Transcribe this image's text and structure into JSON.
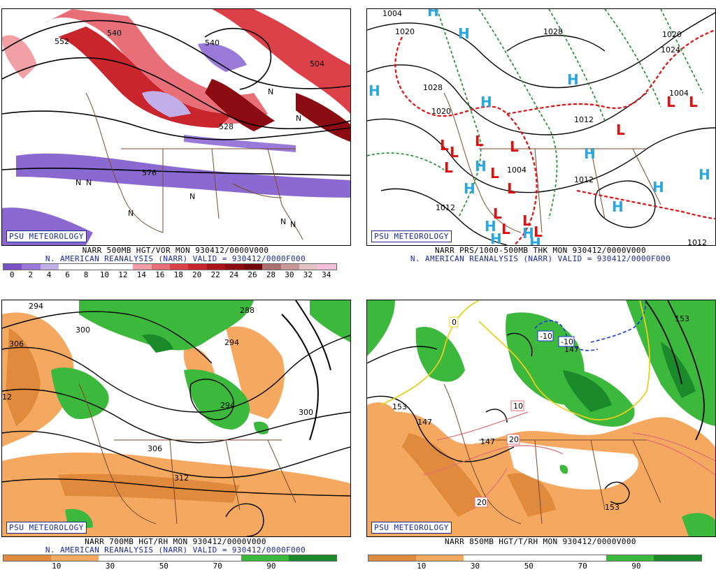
{
  "panels": [
    {
      "id": "vor500",
      "badge": "PSU METEOROLOGY",
      "title_line1": "NARR 500MB HGT/VOR MON 930412/0000V000",
      "title_line2": "N. AMERICAN REANALYSIS (NARR) VALID = 930412/0000F000",
      "contour_labels": [
        "552",
        "540",
        "540",
        "504",
        "528",
        "576"
      ],
      "extreme_markers": "N",
      "colorbar": {
        "ticks": [
          "0",
          "2",
          "4",
          "6",
          "8",
          "10",
          "12",
          "14",
          "16",
          "18",
          "20",
          "22",
          "24",
          "26",
          "28",
          "30",
          "32",
          "34"
        ],
        "colors": [
          "#7a52c8",
          "#9a7ad8",
          "#c2aee8",
          "#ffffff",
          "#ffffff",
          "#ffffff",
          "#ffffff",
          "#f2a0a6",
          "#e86f78",
          "#dc4048",
          "#c8252c",
          "#a8141a",
          "#8a0c12",
          "#6e0a0e",
          "#a87070",
          "#c89898",
          "#e2c4c8",
          "#f4c0d8"
        ]
      }
    },
    {
      "id": "prs",
      "badge": "PSU METEOROLOGY",
      "title_line1": "NARR PRS/1000-500MB THK MON 930412/0000V000",
      "title_line2": "N. AMERICAN REANALYSIS (NARR) VALID = 930412/0000F000",
      "isobar_labels": [
        "1004",
        "1020",
        "1028",
        "1028",
        "1020",
        "1012",
        "1020",
        "1004",
        "1004",
        "1012",
        "1012",
        "1012",
        "1024"
      ],
      "high_symbol": "H",
      "low_symbol": "L",
      "high_color": "#29a8e0",
      "low_color": "#e01010"
    },
    {
      "id": "rh700",
      "badge": "PSU METEOROLOGY",
      "title_line1": "NARR 700MB HGT/RH MON 930412/0000V000",
      "title_line2": "N. AMERICAN REANALYSIS (NARR) VALID = 930412/0000F000",
      "contour_labels": [
        "294",
        "300",
        "306",
        "288",
        "294",
        "294",
        "300",
        "306",
        "312",
        "12"
      ],
      "colorbar": {
        "ticks": [
          "10",
          "30",
          "50",
          "70",
          "90"
        ],
        "colors": [
          "#e08a3e",
          "#f4a860",
          "#ffffff",
          "#ffffff",
          "#ffffff",
          "#3cb83c",
          "#1a8a2a"
        ]
      }
    },
    {
      "id": "t850",
      "badge": "PSU METEOROLOGY",
      "title_line1": "NARR 850MB HGT/T/RH MON 930412/0000V000",
      "title_line2": "",
      "contour_labels": [
        "153",
        "147",
        "147",
        "153",
        "147",
        "153"
      ],
      "temp_labels": [
        "-10",
        "-10",
        "0",
        "10",
        "20",
        "20"
      ],
      "colorbar": {
        "ticks": [
          "10",
          "30",
          "50",
          "70",
          "90"
        ],
        "colors": [
          "#e08a3e",
          "#f4a860",
          "#ffffff",
          "#ffffff",
          "#ffffff",
          "#3cb83c",
          "#1a8a2a"
        ]
      }
    }
  ]
}
